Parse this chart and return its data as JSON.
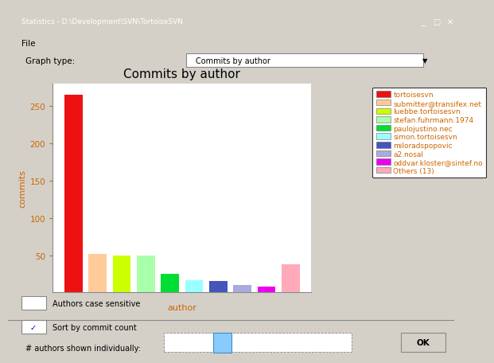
{
  "title": "Commits by author",
  "xlabel": "author",
  "ylabel": "commits",
  "categories": [
    "tortoisesvn",
    "submitter@transifex.net",
    "luebbe.tortoisesvn",
    "stefan.fuhrmann.1974",
    "paulojustino.nec",
    "simon.tortoisesvn",
    "miloradspopovic",
    "a2.nosal",
    "oddvar.kloster@sintef.no",
    "Others (13)"
  ],
  "values": [
    265,
    52,
    49,
    49,
    25,
    16,
    15,
    10,
    8,
    38
  ],
  "colors": [
    "#EE1111",
    "#FFCC99",
    "#CCFF00",
    "#AAFFAA",
    "#00DD33",
    "#99FFFF",
    "#4455BB",
    "#AAAADD",
    "#EE00EE",
    "#FFAABB"
  ],
  "ylim": [
    0,
    280
  ],
  "yticks": [
    50,
    100,
    150,
    200,
    250
  ],
  "dialog_bg": "#D4D0C8",
  "plot_bg": "#FFFFFF",
  "title_color": "#000000",
  "label_color": "#CC6600",
  "tick_color": "#CC6600",
  "spine_color": "#888888",
  "legend_fontsize": 6.5,
  "title_fontsize": 11,
  "axis_label_fontsize": 8,
  "tick_fontsize": 7.5,
  "window_title": "Statistics - D:\\Development\\SVN\\TortoiseSVN",
  "graph_type_label": "Graph type:",
  "graph_type_value": "Commits by author",
  "bottom_labels": [
    "Authors case sensitive",
    "Sort by commit count"
  ],
  "bottom_check": [
    false,
    true
  ],
  "footer_label": "# authors shown individually:"
}
